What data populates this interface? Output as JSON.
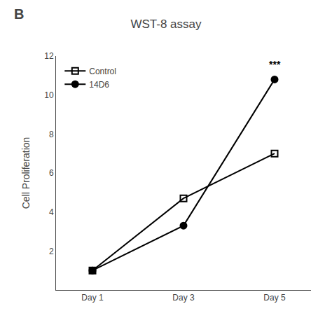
{
  "chart_data": {
    "type": "line",
    "title": "WST-8 assay",
    "panel_label": "B",
    "categories": [
      "Day 1",
      "Day 3",
      "Day 5"
    ],
    "ylabel": "Cell Proliferation",
    "series": [
      {
        "name": "Control",
        "color": "#000000",
        "marker": "square-open",
        "values": [
          1.0,
          4.7,
          7.0
        ]
      },
      {
        "name": "14D6",
        "color": "#000000",
        "marker": "circle",
        "values": [
          1.0,
          3.3,
          10.8
        ]
      }
    ],
    "annotations": [
      {
        "text": "***",
        "x": "Day 5",
        "y": 11.2
      }
    ],
    "ylim": [
      0,
      12
    ],
    "yticks": [
      2,
      4,
      6,
      8,
      10,
      12
    ],
    "grid": false,
    "legend": "upper left"
  }
}
